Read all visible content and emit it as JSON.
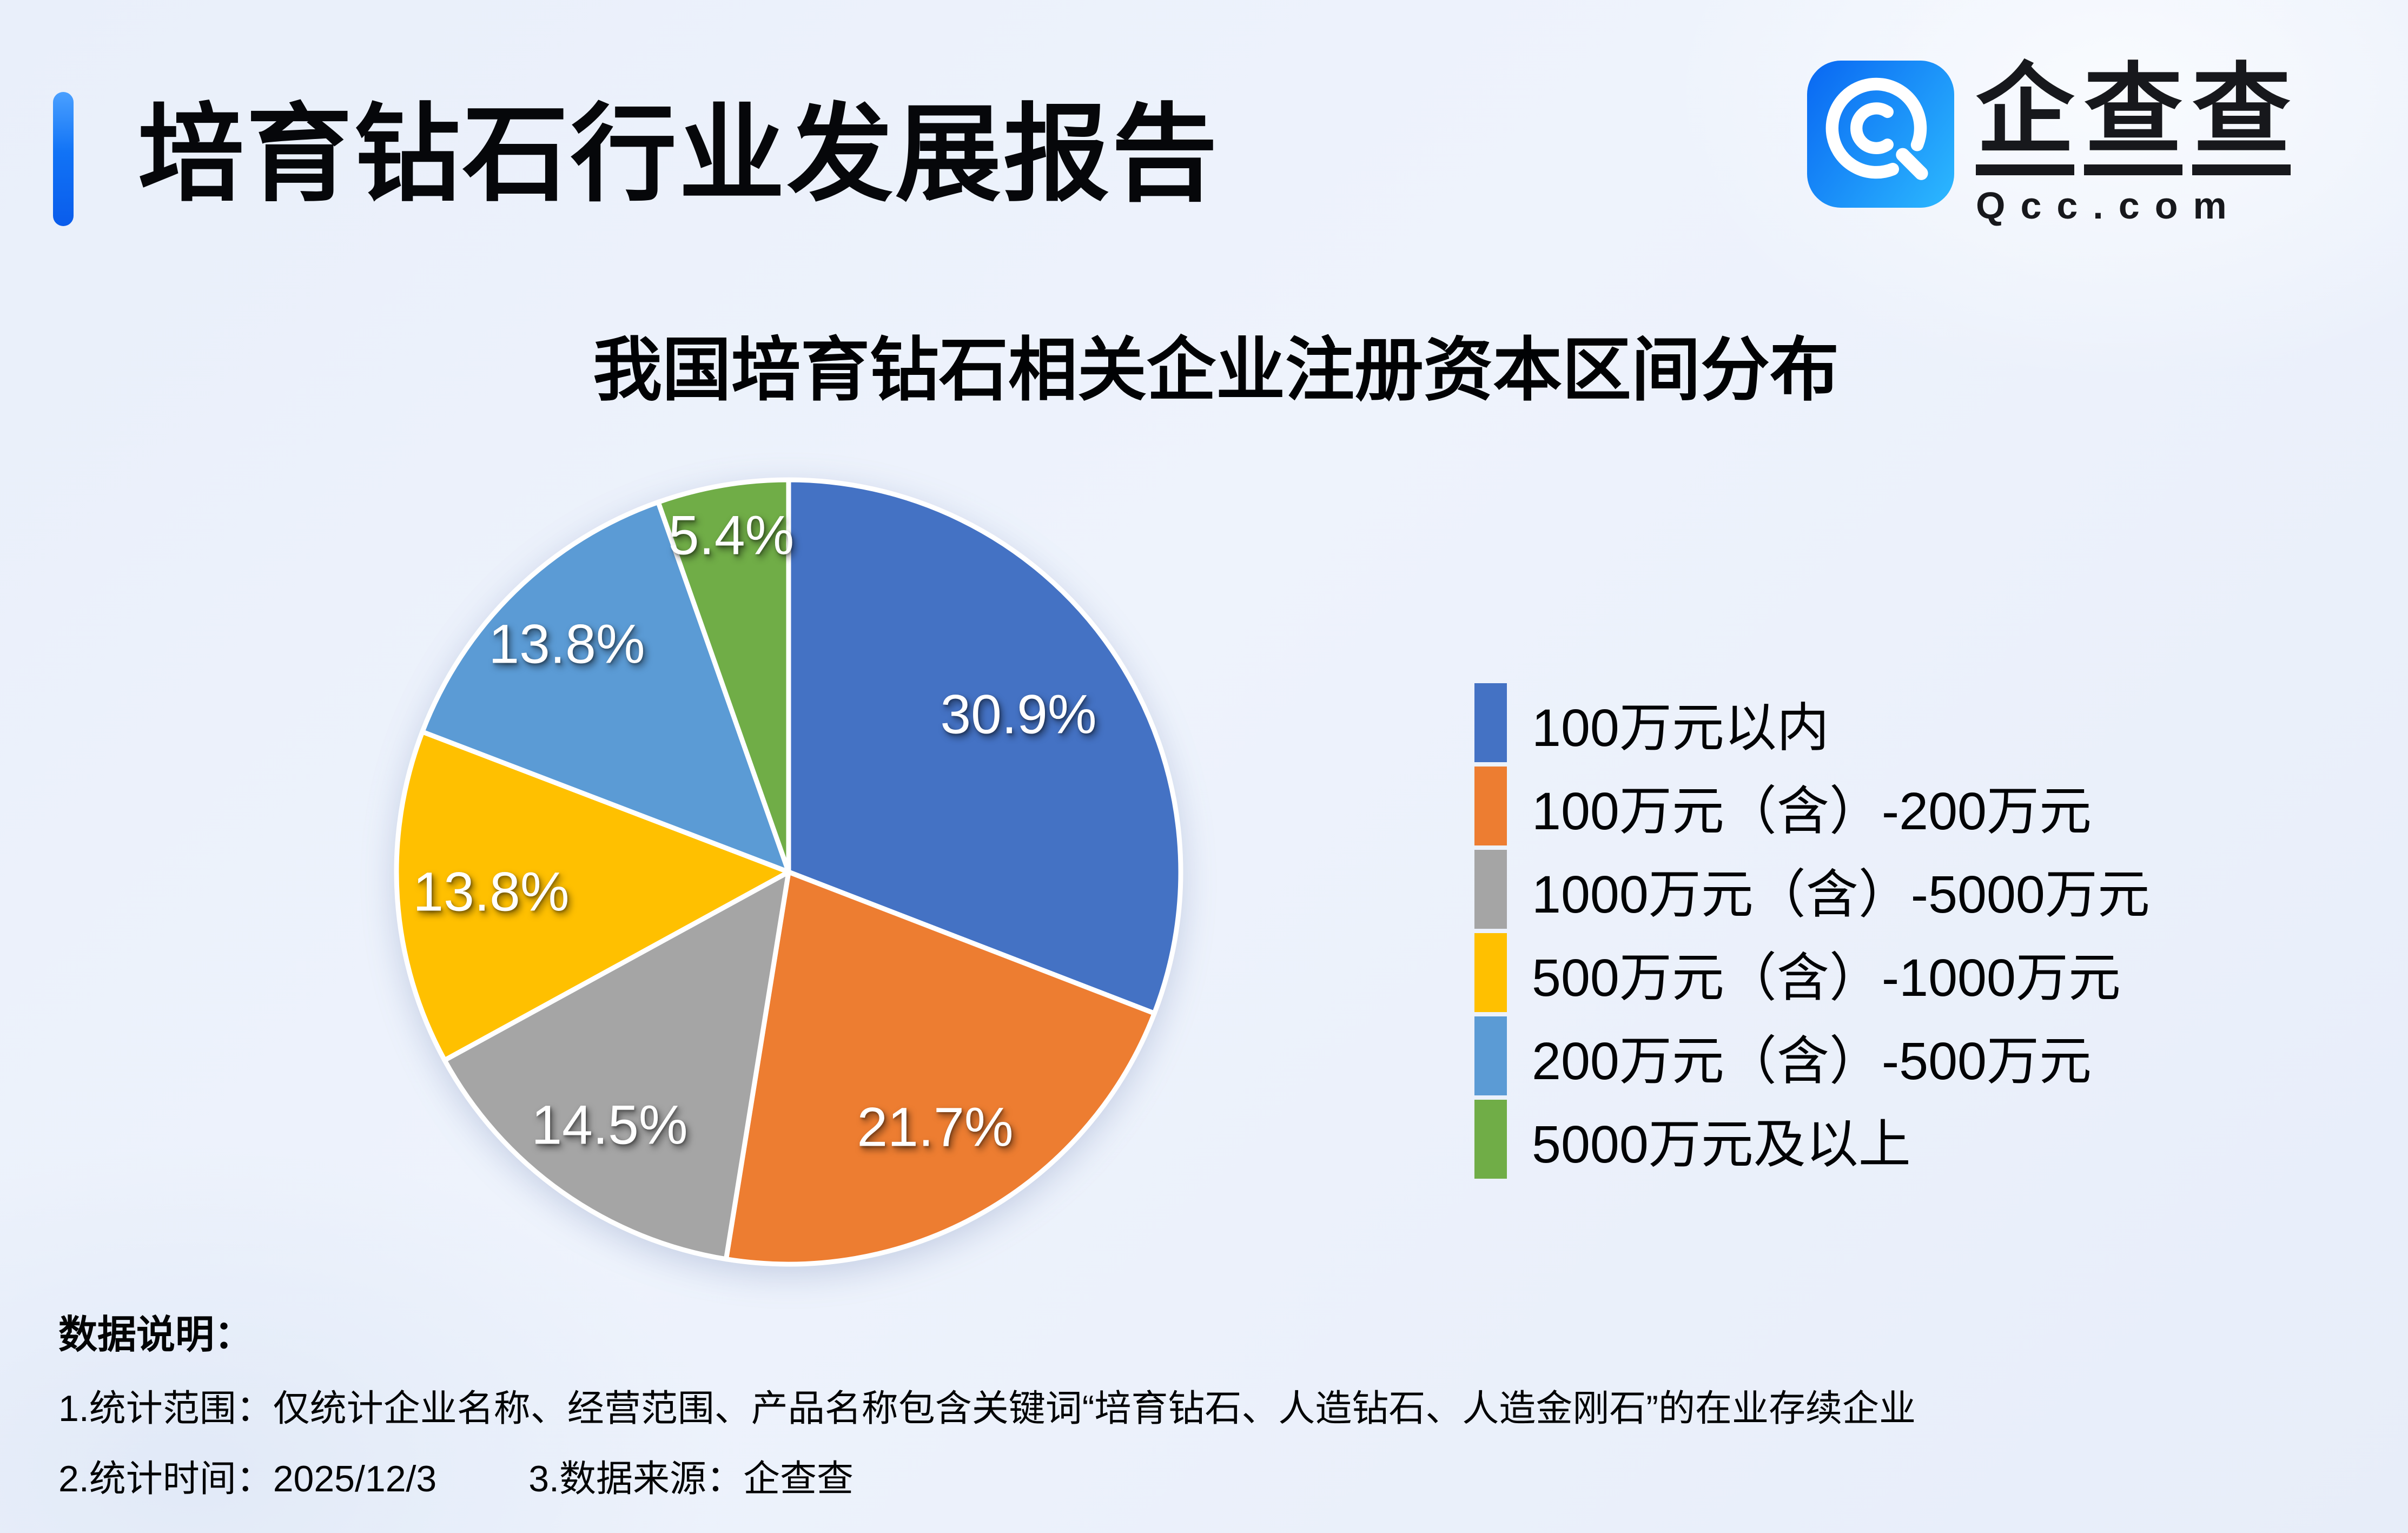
{
  "header": {
    "title": "培育钻石行业发展报告"
  },
  "logo": {
    "name": "企查查",
    "domain": "Qcc.com",
    "icon_color_start": "#0b6cf3",
    "icon_color_end": "#2ab4fe"
  },
  "colors": {
    "accent_bar": "#0a5ceb",
    "background": "#ebf1fa",
    "title_text": "#06070a",
    "pie_border": "#ffffff"
  },
  "chart_data": {
    "type": "pie",
    "title": "我国培育钻石相关企业注册资本区间分布",
    "unit": "%",
    "start_angle_deg": 0,
    "direction": "clockwise",
    "legend_position": "right",
    "slices": [
      {
        "label": "100万元以内",
        "value": 30.9,
        "color": "#4472C4"
      },
      {
        "label": "100万元（含）-200万元",
        "value": 21.7,
        "color": "#ED7D31"
      },
      {
        "label": "1000万元（含）-5000万元",
        "value": 14.5,
        "color": "#A5A5A5"
      },
      {
        "label": "500万元（含）-1000万元",
        "value": 13.8,
        "color": "#FFC000"
      },
      {
        "label": "200万元（含）-500万元",
        "value": 13.8,
        "color": "#5B9BD5"
      },
      {
        "label": "5000万元及以上",
        "value": 5.4,
        "color": "#70AD47"
      }
    ],
    "data_labels": [
      "30.9%",
      "21.7%",
      "14.5%",
      "13.8%",
      "13.8%",
      "5.4%"
    ]
  },
  "footer": {
    "heading": "数据说明：",
    "notes": [
      "1.统计范围：仅统计企业名称、经营范围、产品名称包含关键词“培育钻石、人造钻石、人造金刚石”的在业存续企业",
      "2.统计时间：2025/12/3",
      "3.数据来源：企查查"
    ]
  }
}
